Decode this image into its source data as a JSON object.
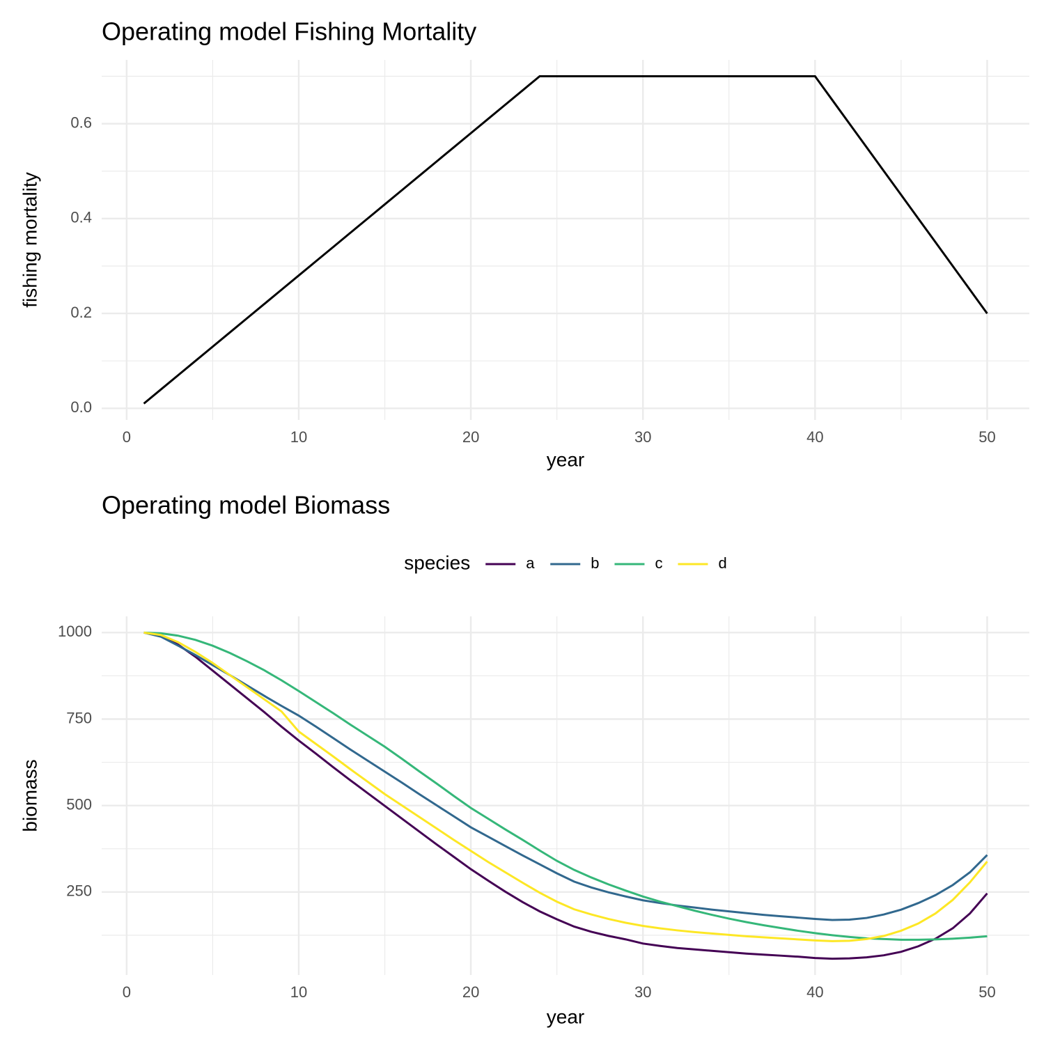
{
  "chart_data": [
    {
      "type": "line",
      "title": "Operating model Fishing Mortality",
      "x_label": "year",
      "y_label": "fishing mortality",
      "x": [
        1,
        2,
        3,
        4,
        5,
        6,
        7,
        8,
        9,
        10,
        11,
        12,
        13,
        14,
        15,
        16,
        17,
        18,
        19,
        20,
        21,
        22,
        23,
        24,
        25,
        26,
        27,
        28,
        29,
        30,
        31,
        32,
        33,
        34,
        35,
        36,
        37,
        38,
        39,
        40,
        41,
        42,
        43,
        44,
        45,
        46,
        47,
        48,
        49,
        50
      ],
      "values": [
        0.01,
        0.04,
        0.07,
        0.1,
        0.13,
        0.16,
        0.19,
        0.22,
        0.25,
        0.28,
        0.31,
        0.34,
        0.37,
        0.4,
        0.43,
        0.46,
        0.49,
        0.52,
        0.55,
        0.58,
        0.61,
        0.64,
        0.67,
        0.7,
        0.7,
        0.7,
        0.7,
        0.7,
        0.7,
        0.7,
        0.7,
        0.7,
        0.7,
        0.7,
        0.7,
        0.7,
        0.7,
        0.7,
        0.7,
        0.7,
        0.65,
        0.6,
        0.55,
        0.5,
        0.45,
        0.4,
        0.35,
        0.3,
        0.25,
        0.2
      ],
      "color": "#000000",
      "xlim": [
        -1.45,
        52.45
      ],
      "xticks": [
        0,
        10,
        20,
        30,
        40,
        50
      ],
      "ylim": [
        -0.0245,
        0.7345
      ],
      "yticks": [
        {
          "value": 0,
          "label": "0.0"
        },
        0.2,
        0.4,
        0.6
      ],
      "grid": true
    },
    {
      "type": "line",
      "title": "Operating model Biomass",
      "x_label": "year",
      "y_label": "biomass",
      "legend": "top",
      "legend_title": "species",
      "x": [
        1,
        2,
        3,
        4,
        5,
        6,
        7,
        8,
        9,
        10,
        11,
        12,
        13,
        14,
        15,
        16,
        17,
        18,
        19,
        20,
        21,
        22,
        23,
        24,
        25,
        26,
        27,
        28,
        29,
        30,
        31,
        32,
        33,
        34,
        35,
        36,
        37,
        38,
        39,
        40,
        41,
        42,
        43,
        44,
        45,
        46,
        47,
        48,
        49,
        50
      ],
      "series": [
        {
          "name": "a",
          "color": "#440154",
          "values": [
            1000,
            992,
            965,
            930,
            890,
            850,
            810,
            770,
            728,
            688,
            650,
            611,
            573,
            536,
            499,
            462,
            425,
            388,
            352,
            316,
            283,
            251,
            221,
            194,
            171,
            150,
            135,
            123,
            113,
            101,
            94,
            88,
            84,
            80,
            76,
            72,
            69,
            66,
            63,
            59,
            57,
            58,
            61,
            67,
            77,
            93,
            115,
            145,
            188,
            246
          ]
        },
        {
          "name": "b",
          "color": "#31688E",
          "values": [
            1000,
            988,
            962,
            935,
            906,
            877,
            847,
            817,
            788,
            760,
            728,
            695,
            662,
            630,
            598,
            566,
            533,
            501,
            469,
            437,
            410,
            383,
            356,
            330,
            304,
            280,
            263,
            249,
            237,
            226,
            218,
            211,
            205,
            199,
            194,
            189,
            184,
            180,
            176,
            172,
            169,
            170,
            175,
            185,
            199,
            218,
            241,
            270,
            307,
            357
          ]
        },
        {
          "name": "c",
          "color": "#35B779",
          "values": [
            1000,
            998,
            991,
            979,
            962,
            941,
            917,
            891,
            862,
            831,
            799,
            767,
            734,
            702,
            670,
            635,
            599,
            564,
            528,
            493,
            462,
            431,
            401,
            370,
            340,
            314,
            292,
            272,
            254,
            237,
            222,
            209,
            196,
            184,
            173,
            163,
            154,
            146,
            138,
            131,
            125,
            120,
            116,
            114,
            112,
            112,
            113,
            115,
            118,
            122
          ]
        },
        {
          "name": "d",
          "color": "#FDE725",
          "values": [
            1000,
            993,
            972,
            944,
            912,
            877,
            842,
            807,
            772,
            714,
            678,
            642,
            605,
            569,
            533,
            500,
            467,
            434,
            401,
            369,
            337,
            307,
            277,
            248,
            222,
            200,
            185,
            172,
            161,
            152,
            145,
            139,
            134,
            130,
            126,
            122,
            119,
            116,
            113,
            110,
            108,
            109,
            114,
            123,
            138,
            159,
            188,
            227,
            278,
            338
          ]
        }
      ],
      "xlim": [
        -1.45,
        52.45
      ],
      "xticks": [
        0,
        10,
        20,
        30,
        40,
        50
      ],
      "ylim": [
        10,
        1047
      ],
      "yticks": [
        250,
        500,
        750,
        1000
      ],
      "grid": true
    }
  ]
}
